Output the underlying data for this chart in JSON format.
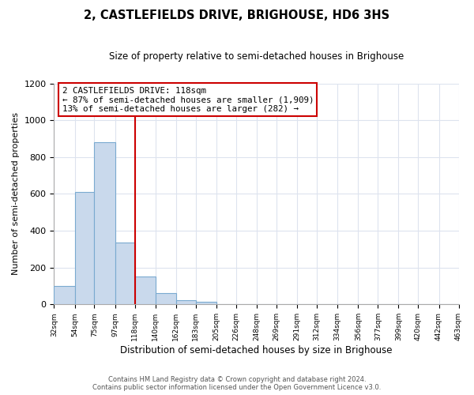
{
  "title": "2, CASTLEFIELDS DRIVE, BRIGHOUSE, HD6 3HS",
  "subtitle": "Size of property relative to semi-detached houses in Brighouse",
  "xlabel": "Distribution of semi-detached houses by size in Brighouse",
  "ylabel": "Number of semi-detached properties",
  "bin_edges": [
    32,
    54,
    75,
    97,
    118,
    140,
    162,
    183,
    205,
    226,
    248,
    269,
    291,
    312,
    334,
    356,
    377,
    399,
    420,
    442,
    463
  ],
  "bin_counts": [
    100,
    612,
    880,
    335,
    150,
    63,
    22,
    15,
    0,
    0,
    0,
    0,
    0,
    0,
    0,
    0,
    0,
    0,
    0,
    0
  ],
  "bar_color": "#c9d9ec",
  "bar_edgecolor": "#7aaad0",
  "property_value": 118,
  "vline_color": "#cc0000",
  "annotation_line1": "2 CASTLEFIELDS DRIVE: 118sqm",
  "annotation_line2": "← 87% of semi-detached houses are smaller (1,909)",
  "annotation_line3": "13% of semi-detached houses are larger (282) →",
  "annotation_box_edgecolor": "#cc0000",
  "ylim": [
    0,
    1200
  ],
  "yticks": [
    0,
    200,
    400,
    600,
    800,
    1000,
    1200
  ],
  "footer_line1": "Contains HM Land Registry data © Crown copyright and database right 2024.",
  "footer_line2": "Contains public sector information licensed under the Open Government Licence v3.0.",
  "background_color": "#ffffff",
  "grid_color": "#dde3ee"
}
